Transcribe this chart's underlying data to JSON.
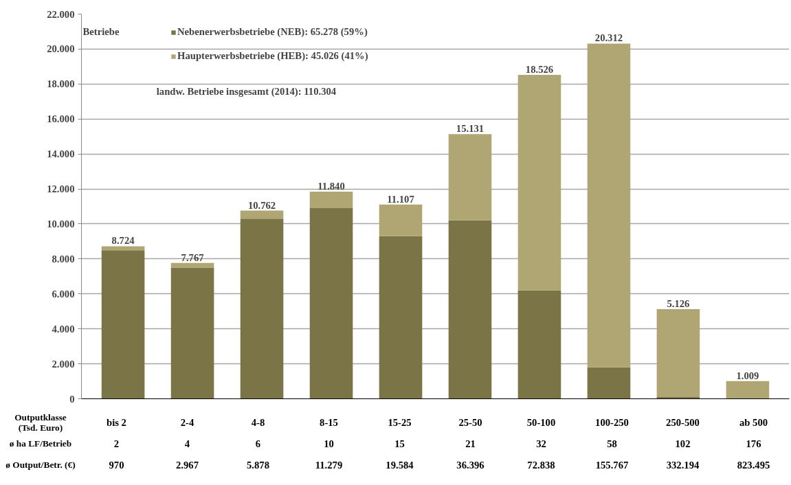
{
  "chart_data": {
    "type": "bar",
    "stacked": true,
    "ylabel": "Betriebe",
    "xlabel": "Outputklasse\n(Tsd. Euro)",
    "categories": [
      "bis 2",
      "2-4",
      "4-8",
      "8-15",
      "15-25",
      "25-50",
      "50-100",
      "100-250",
      "250-500",
      "ab 500"
    ],
    "series": [
      {
        "name": "Nebenerwerbsbetriebe (NEB): 65.278 (59%)",
        "color": "#7b7446",
        "values": [
          8500,
          7500,
          10300,
          10900,
          9300,
          10200,
          6200,
          1800,
          100,
          0
        ]
      },
      {
        "name": "Haupterwerbsbetriebe (HEB): 45.026 (41%)",
        "color": "#b0a674",
        "values": [
          224,
          267,
          462,
          940,
          1807,
          4931,
          12326,
          18512,
          5026,
          1009
        ]
      }
    ],
    "totals": [
      "8.724",
      "7.767",
      "10.762",
      "11.840",
      "11.107",
      "15.131",
      "18.526",
      "20.312",
      "5.126",
      "1.009"
    ],
    "ylim": [
      0,
      22000
    ],
    "yticks": [
      {
        "value": 0,
        "label": "0"
      },
      {
        "value": 2000,
        "label": "2.000"
      },
      {
        "value": 4000,
        "label": "4.000"
      },
      {
        "value": 6000,
        "label": "6.000"
      },
      {
        "value": 8000,
        "label": "8.000"
      },
      {
        "value": 10000,
        "label": "10.000"
      },
      {
        "value": 12000,
        "label": "12.000"
      },
      {
        "value": 14000,
        "label": "14.000"
      },
      {
        "value": 16000,
        "label": "16.000"
      },
      {
        "value": 18000,
        "label": "18.000"
      },
      {
        "value": 20000,
        "label": "20.000"
      },
      {
        "value": 22000,
        "label": "22.000"
      }
    ],
    "grid": "y",
    "legend": "top left",
    "annotations": [
      "landw. Betriebe insgesamt (2014): 110.304",
      "ø ha LF/Betrieb",
      "2",
      "4",
      "6",
      "10",
      "15",
      "21",
      "32",
      "58",
      "102",
      "176",
      "ø Output/Betr. (€)",
      "970",
      "2.967",
      "5.878",
      "11.279",
      "19.584",
      "36.396",
      "72.838",
      "155.767",
      "332.194",
      "823.495"
    ]
  }
}
